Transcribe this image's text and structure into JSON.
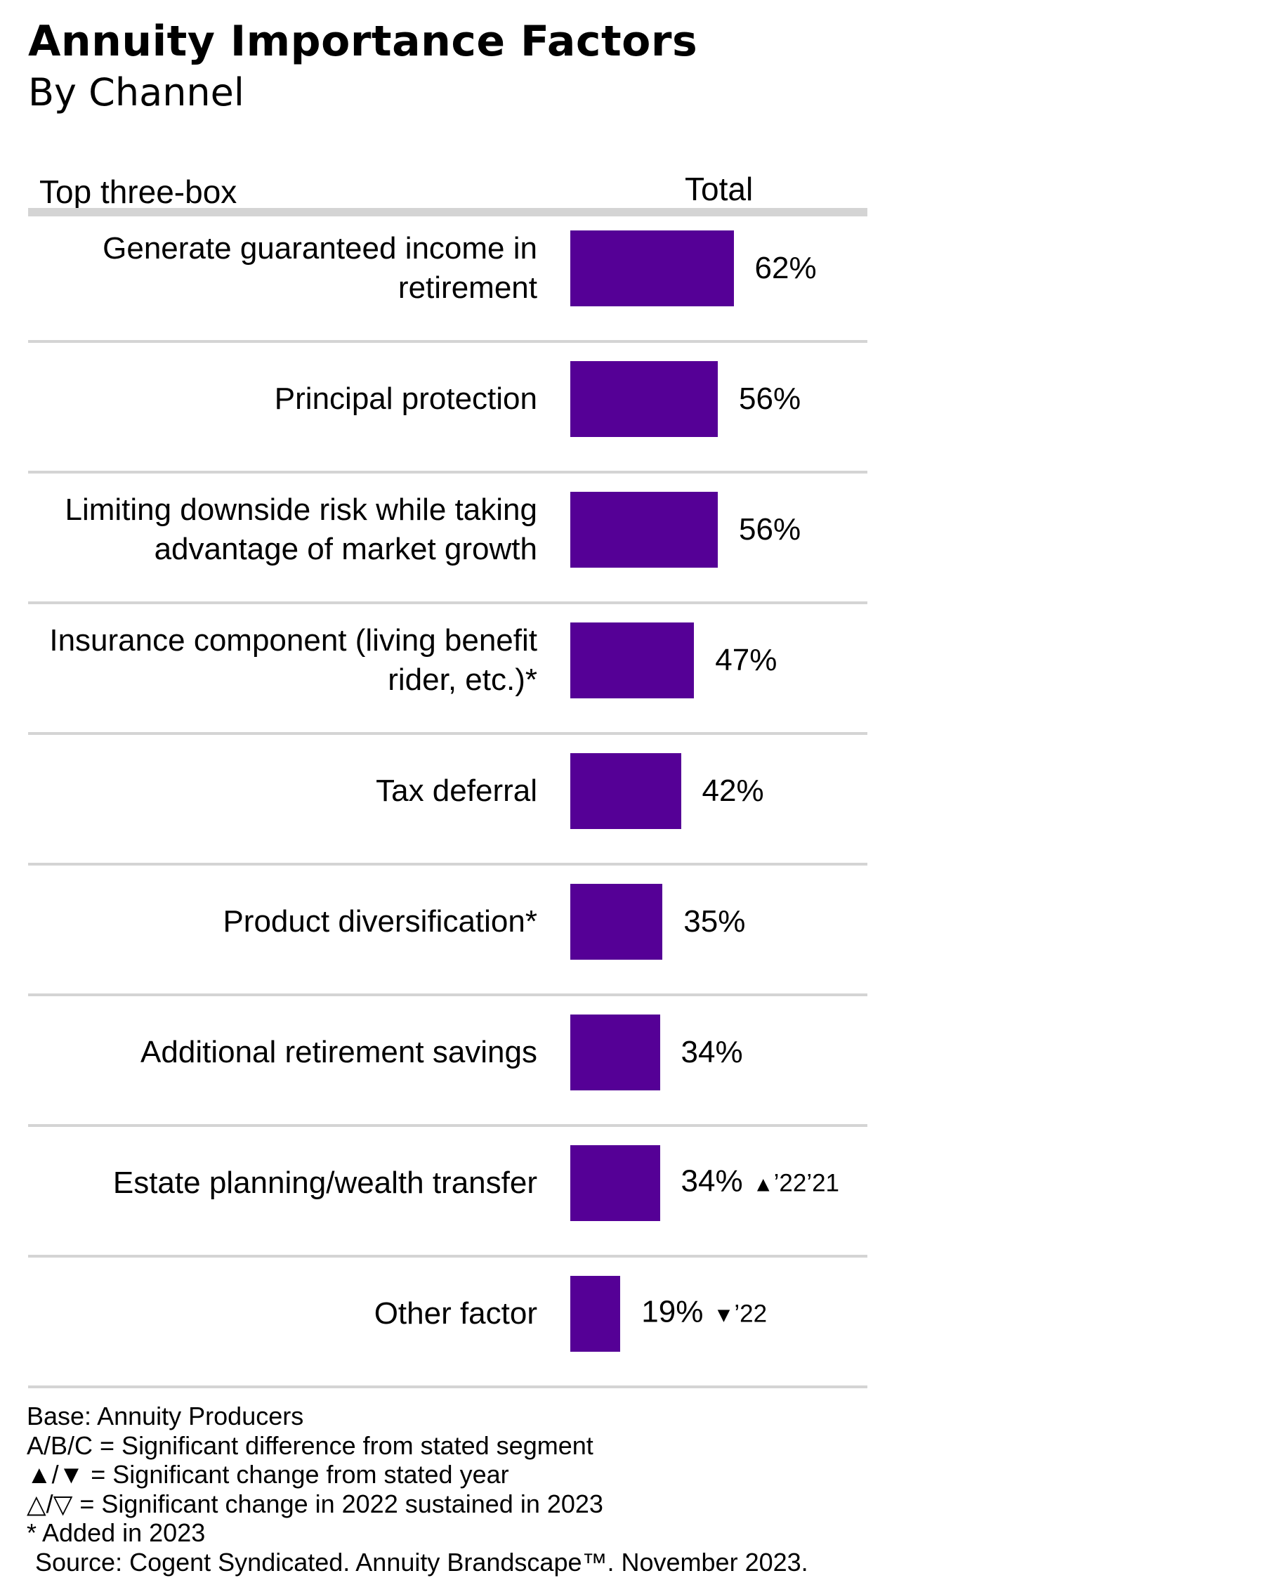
{
  "chart_data": {
    "type": "bar",
    "orientation": "horizontal",
    "title": "Annuity Importance Factors",
    "subtitle": "By Channel",
    "row_header": "Top three-box",
    "series": [
      {
        "name": "Total",
        "values": [
          62,
          56,
          56,
          47,
          42,
          35,
          34,
          34,
          19
        ]
      }
    ],
    "categories": [
      "Generate guaranteed income in retirement",
      "Principal protection",
      "Limiting downside risk while taking advantage of market growth",
      "Insurance component (living benefit rider, etc.)*",
      "Tax deferral",
      "Product diversification*",
      "Additional retirement savings",
      "Estate planning/wealth transfer",
      "Other factor"
    ],
    "value_labels": [
      "62%",
      "56%",
      "56%",
      "47%",
      "42%",
      "35%",
      "34%",
      "34%",
      "19%"
    ],
    "significance": [
      {
        "symbol": "",
        "years": ""
      },
      {
        "symbol": "",
        "years": ""
      },
      {
        "symbol": "",
        "years": ""
      },
      {
        "symbol": "",
        "years": ""
      },
      {
        "symbol": "",
        "years": ""
      },
      {
        "symbol": "",
        "years": ""
      },
      {
        "symbol": "",
        "years": ""
      },
      {
        "symbol": "▲",
        "years": "’22’21"
      },
      {
        "symbol": "▼",
        "years": "’22"
      }
    ],
    "xlim": [
      0,
      100
    ],
    "bar_color": "#550096",
    "separator_color": "#d4d4d4"
  },
  "footnotes": {
    "base": "Base: Annuity Producers",
    "abc": "A/B/C = Significant difference from stated segment",
    "filled_triangles": "▲/▼ = Significant change from stated year",
    "outline_triangles": "△/▽ = Significant change in 2022 sustained in 2023",
    "added": "* Added in 2023",
    "source": "Source: Cogent Syndicated. Annuity Brandscape™. November 2023."
  }
}
